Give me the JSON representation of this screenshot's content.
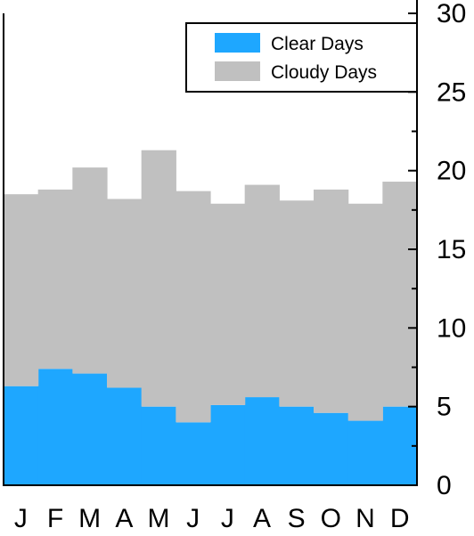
{
  "chart_data": {
    "type": "area",
    "stacked": true,
    "step": true,
    "categories": [
      "J",
      "F",
      "M",
      "A",
      "M",
      "J",
      "J",
      "A",
      "S",
      "O",
      "N",
      "D"
    ],
    "series": [
      {
        "name": "Clear Days",
        "color": "#1ea7ff",
        "values": [
          6.3,
          7.4,
          7.1,
          6.2,
          5.0,
          4.0,
          5.1,
          5.6,
          5.0,
          4.6,
          4.1,
          5.0
        ]
      },
      {
        "name": "Cloudy Days",
        "color": "#c0c0c0",
        "values": [
          12.2,
          11.4,
          13.1,
          12.0,
          16.3,
          14.7,
          12.8,
          13.5,
          13.1,
          14.2,
          13.8,
          14.3
        ]
      }
    ],
    "ylim": [
      0,
      30
    ],
    "yticks": [
      "0",
      "5",
      "10",
      "15",
      "20",
      "25",
      "30"
    ],
    "y_axis_side": "right",
    "legend_position": "top-right",
    "title": "",
    "xlabel": "",
    "ylabel": ""
  }
}
